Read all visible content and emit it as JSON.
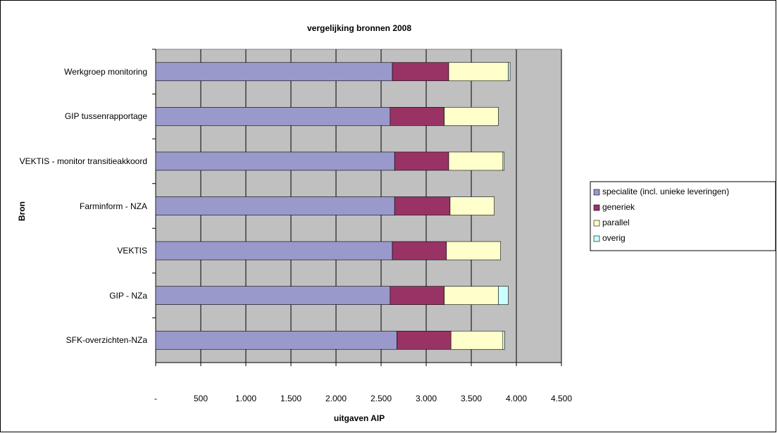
{
  "chart_data": {
    "type": "stacked-barh",
    "title": "vergelijking bronnen 2008",
    "xlabel": "uitgaven AIP",
    "ylabel": "Bron",
    "categories": [
      "Werkgroep monitoring",
      "GIP tussenrapportage",
      "VEKTIS - monitor transitieakkoord",
      "Farminform - NZA",
      "VEKTIS",
      "GIP - NZa",
      "SFK-overzichten-NZa"
    ],
    "series": [
      {
        "name": "specialite (incl. unieke leveringen)",
        "color": "#9999cc",
        "values": [
          2625,
          2600,
          2650,
          2650,
          2625,
          2600,
          2675
        ]
      },
      {
        "name": "generiek",
        "color": "#993366",
        "values": [
          625,
          600,
          600,
          615,
          600,
          600,
          600
        ]
      },
      {
        "name": "parallel",
        "color": "#ffffcc",
        "values": [
          660,
          600,
          600,
          490,
          600,
          600,
          575
        ]
      },
      {
        "name": "overig",
        "color": "#ccffff",
        "values": [
          20,
          0,
          15,
          0,
          0,
          110,
          20
        ]
      }
    ],
    "xlim": [
      0,
      4500
    ],
    "xticks": [
      {
        "value": 0,
        "label": "-"
      },
      500,
      {
        "value": 1000,
        "label": "1.000"
      },
      {
        "value": 1500,
        "label": "1.500"
      },
      {
        "value": 2000,
        "label": "2.000"
      },
      {
        "value": 2500,
        "label": "2.500"
      },
      {
        "value": 3000,
        "label": "3.000"
      },
      {
        "value": 3500,
        "label": "3.500"
      },
      {
        "value": 4000,
        "label": "4.000"
      },
      {
        "value": 4500,
        "label": "4.500"
      }
    ],
    "grid": true,
    "legend": "right"
  }
}
